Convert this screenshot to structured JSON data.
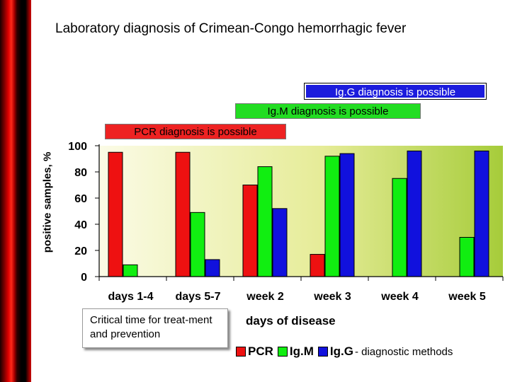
{
  "title": "Laboratory diagnosis of Crimean-Congo hemorrhagic fever",
  "banners": {
    "igg": "Ig.G diagnosis is possible",
    "igm": "Ig.M diagnosis is possible",
    "pcr": "PCR diagnosis is possible"
  },
  "note": "Critical time for treat-ment and prevention",
  "legend_suffix": "- diagnostic methods",
  "colors": {
    "pcr": "#ee1111",
    "igm": "#11ee11",
    "igg": "#1111dd"
  },
  "chart_data": {
    "type": "bar",
    "title": "Laboratory diagnosis of Crimean-Congo hemorrhagic fever",
    "xlabel": "days of disease",
    "ylabel": "positive samples, %",
    "ylim": [
      0,
      100
    ],
    "yticks": [
      0,
      20,
      40,
      60,
      80,
      100
    ],
    "grid": false,
    "categories": [
      "days 1-4",
      "days 5-7",
      "week 2",
      "week 3",
      "week 4",
      "week 5"
    ],
    "series": [
      {
        "name": "PCR",
        "values": [
          95,
          95,
          70,
          17,
          0,
          0
        ]
      },
      {
        "name": "Ig.M",
        "values": [
          9,
          49,
          84,
          92,
          75,
          30
        ]
      },
      {
        "name": "Ig.G",
        "values": [
          0,
          13,
          52,
          94,
          96,
          96
        ]
      }
    ]
  }
}
